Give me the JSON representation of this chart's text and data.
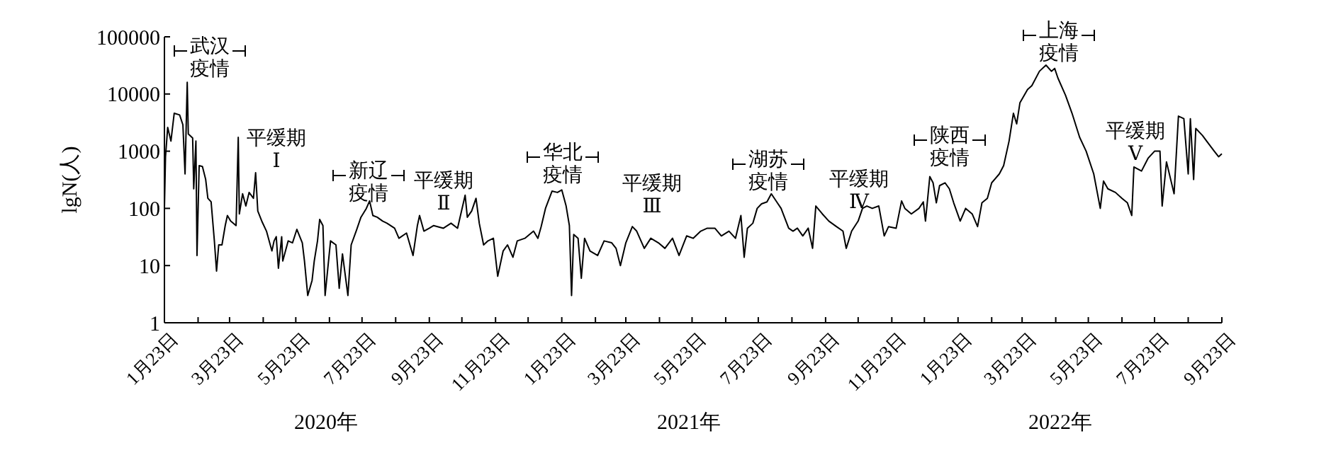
{
  "chart_data": {
    "type": "line",
    "ylabel": "lgN(人)",
    "log": true,
    "grid": false,
    "xlim": [
      "2020-01-23",
      "2022-09-23"
    ],
    "xticks": [
      {
        "value": "2020-01-23",
        "label": "1月23日"
      },
      {
        "value": "2020-02-23",
        "label": null
      },
      {
        "value": "2020-03-23",
        "label": "3月23日"
      },
      {
        "value": "2020-04-23",
        "label": null
      },
      {
        "value": "2020-05-23",
        "label": "5月23日"
      },
      {
        "value": "2020-06-23",
        "label": null
      },
      {
        "value": "2020-07-23",
        "label": "7月23日"
      },
      {
        "value": "2020-08-23",
        "label": null
      },
      {
        "value": "2020-09-23",
        "label": "9月23日"
      },
      {
        "value": "2020-10-23",
        "label": null
      },
      {
        "value": "2020-11-23",
        "label": "11月23日"
      },
      {
        "value": "2020-12-23",
        "label": null
      },
      {
        "value": "2021-01-23",
        "label": "1月23日"
      },
      {
        "value": "2021-02-23",
        "label": null
      },
      {
        "value": "2021-03-23",
        "label": "3月23日"
      },
      {
        "value": "2021-04-23",
        "label": null
      },
      {
        "value": "2021-05-23",
        "label": "5月23日"
      },
      {
        "value": "2021-06-23",
        "label": null
      },
      {
        "value": "2021-07-23",
        "label": "7月23日"
      },
      {
        "value": "2021-08-23",
        "label": null
      },
      {
        "value": "2021-09-23",
        "label": "9月23日"
      },
      {
        "value": "2021-10-23",
        "label": null
      },
      {
        "value": "2021-11-23",
        "label": "11月23日"
      },
      {
        "value": "2021-12-23",
        "label": null
      },
      {
        "value": "2022-01-23",
        "label": "1月23日"
      },
      {
        "value": "2022-02-23",
        "label": null
      },
      {
        "value": "2022-03-23",
        "label": "3月23日"
      },
      {
        "value": "2022-04-23",
        "label": null
      },
      {
        "value": "2022-05-23",
        "label": "5月23日"
      },
      {
        "value": "2022-06-23",
        "label": null
      },
      {
        "value": "2022-07-23",
        "label": "7月23日"
      },
      {
        "value": "2022-08-23",
        "label": null
      },
      {
        "value": "2022-09-23",
        "label": "9月23日"
      }
    ],
    "ylim": [
      1,
      100000
    ],
    "yticks": [
      1,
      10,
      100,
      1000,
      10000,
      100000
    ],
    "x": [
      "2020-01-23",
      "2020-01-24",
      "2020-01-26",
      "2020-01-29",
      "2020-02-01",
      "2020-02-06",
      "2020-02-09",
      "2020-02-11",
      "2020-02-13",
      "2020-02-14",
      "2020-02-18",
      "2020-02-19",
      "2020-02-21",
      "2020-02-22",
      "2020-02-24",
      "2020-02-27",
      "2020-03-01",
      "2020-03-03",
      "2020-03-06",
      "2020-03-09",
      "2020-03-11",
      "2020-03-13",
      "2020-03-16",
      "2020-03-19",
      "2020-03-21",
      "2020-03-24",
      "2020-03-29",
      "2020-03-31",
      "2020-04-01",
      "2020-04-04",
      "2020-04-07",
      "2020-04-10",
      "2020-04-14",
      "2020-04-16",
      "2020-04-18",
      "2020-04-22",
      "2020-04-26",
      "2020-05-01",
      "2020-05-03",
      "2020-05-05",
      "2020-05-07",
      "2020-05-10",
      "2020-05-11",
      "2020-05-16",
      "2020-05-20",
      "2020-05-24",
      "2020-05-29",
      "2020-05-31",
      "2020-06-03",
      "2020-06-07",
      "2020-06-09",
      "2020-06-12",
      "2020-06-14",
      "2020-06-17",
      "2020-06-19",
      "2020-06-24",
      "2020-06-29",
      "2020-07-02",
      "2020-07-05",
      "2020-07-10",
      "2020-07-13",
      "2020-07-18",
      "2020-07-22",
      "2020-07-27",
      "2020-07-30",
      "2020-08-02",
      "2020-08-06",
      "2020-08-11",
      "2020-08-15",
      "2020-08-22",
      "2020-08-26",
      "2020-09-02",
      "2020-09-08",
      "2020-09-12",
      "2020-09-14",
      "2020-09-18",
      "2020-09-23",
      "2020-09-27",
      "2020-10-06",
      "2020-10-13",
      "2020-10-19",
      "2020-10-26",
      "2020-10-28",
      "2020-11-01",
      "2020-11-05",
      "2020-11-08",
      "2020-11-12",
      "2020-11-16",
      "2020-11-21",
      "2020-11-25",
      "2020-11-30",
      "2020-12-04",
      "2020-12-09",
      "2020-12-13",
      "2020-12-20",
      "2020-12-28",
      "2021-01-01",
      "2021-01-04",
      "2021-01-08",
      "2021-01-14",
      "2021-01-19",
      "2021-01-23",
      "2021-01-27",
      "2021-01-30",
      "2021-02-01",
      "2021-02-03",
      "2021-02-07",
      "2021-02-10",
      "2021-02-13",
      "2021-02-18",
      "2021-02-25",
      "2021-03-03",
      "2021-03-10",
      "2021-03-14",
      "2021-03-18",
      "2021-03-23",
      "2021-03-29",
      "2021-04-02",
      "2021-04-09",
      "2021-04-15",
      "2021-04-22",
      "2021-04-28",
      "2021-05-05",
      "2021-05-11",
      "2021-05-18",
      "2021-05-24",
      "2021-05-31",
      "2021-06-06",
      "2021-06-13",
      "2021-06-19",
      "2021-06-26",
      "2021-07-02",
      "2021-07-07",
      "2021-07-10",
      "2021-07-13",
      "2021-07-18",
      "2021-07-22",
      "2021-07-26",
      "2021-07-31",
      "2021-08-04",
      "2021-08-09",
      "2021-08-13",
      "2021-08-20",
      "2021-08-24",
      "2021-08-28",
      "2021-09-02",
      "2021-09-07",
      "2021-09-11",
      "2021-09-14",
      "2021-09-20",
      "2021-09-26",
      "2021-10-03",
      "2021-10-09",
      "2021-10-12",
      "2021-10-17",
      "2021-10-23",
      "2021-10-27",
      "2021-10-31",
      "2021-11-05",
      "2021-11-11",
      "2021-11-16",
      "2021-11-20",
      "2021-11-27",
      "2021-12-02",
      "2021-12-05",
      "2021-12-11",
      "2021-12-18",
      "2021-12-22",
      "2021-12-24",
      "2021-12-28",
      "2021-12-31",
      "2022-01-03",
      "2022-01-06",
      "2022-01-11",
      "2022-01-15",
      "2022-01-19",
      "2022-01-25",
      "2022-01-30",
      "2022-02-05",
      "2022-02-10",
      "2022-02-14",
      "2022-02-19",
      "2022-02-23",
      "2022-03-02",
      "2022-03-06",
      "2022-03-11",
      "2022-03-15",
      "2022-03-18",
      "2022-03-21",
      "2022-03-28",
      "2022-04-01",
      "2022-04-08",
      "2022-04-14",
      "2022-04-19",
      "2022-04-22",
      "2022-04-25",
      "2022-05-02",
      "2022-05-08",
      "2022-05-15",
      "2022-05-21",
      "2022-05-28",
      "2022-06-03",
      "2022-06-06",
      "2022-06-10",
      "2022-06-17",
      "2022-06-23",
      "2022-06-28",
      "2022-07-02",
      "2022-07-04",
      "2022-07-11",
      "2022-07-17",
      "2022-07-23",
      "2022-07-28",
      "2022-07-30",
      "2022-08-03",
      "2022-08-10",
      "2022-08-14",
      "2022-08-19",
      "2022-08-23",
      "2022-08-25",
      "2022-08-28",
      "2022-08-30",
      "2022-09-05",
      "2022-09-09",
      "2022-09-16",
      "2022-09-20",
      "2022-09-23"
    ],
    "series": [
      {
        "color": "#000000",
        "values": [
          100,
          800,
          2600,
          1500,
          4600,
          4300,
          2900,
          400,
          16000,
          2000,
          1700,
          220,
          1500,
          15,
          560,
          540,
          320,
          150,
          130,
          27,
          8,
          23,
          23,
          50,
          75,
          60,
          50,
          1750,
          80,
          180,
          110,
          190,
          150,
          420,
          90,
          58,
          40,
          18,
          27,
          32,
          9,
          32,
          12,
          27,
          25,
          43,
          25,
          12,
          3,
          5.5,
          12,
          27,
          64,
          50,
          3,
          27,
          23,
          4,
          16,
          3,
          23,
          42,
          70,
          100,
          135,
          75,
          70,
          60,
          55,
          45,
          30,
          37,
          15,
          50,
          75,
          40,
          45,
          50,
          45,
          55,
          45,
          170,
          70,
          90,
          150,
          55,
          23,
          27,
          30,
          6.5,
          18,
          23,
          14,
          27,
          30,
          40,
          30,
          48,
          100,
          200,
          190,
          210,
          110,
          50,
          3,
          35,
          30,
          6,
          30,
          18,
          15,
          27,
          25,
          20,
          10,
          25,
          48,
          40,
          20,
          30,
          25,
          20,
          30,
          15,
          33,
          30,
          40,
          45,
          45,
          33,
          40,
          30,
          75,
          14,
          45,
          55,
          100,
          120,
          130,
          180,
          130,
          100,
          45,
          40,
          45,
          33,
          45,
          20,
          110,
          80,
          60,
          48,
          40,
          20,
          40,
          60,
          100,
          110,
          100,
          110,
          33,
          48,
          45,
          135,
          100,
          80,
          100,
          130,
          60,
          360,
          280,
          125,
          250,
          280,
          220,
          125,
          60,
          100,
          80,
          48,
          125,
          150,
          280,
          400,
          560,
          1500,
          4600,
          3000,
          7000,
          12000,
          14000,
          25000,
          32000,
          25000,
          28000,
          19000,
          9500,
          4600,
          1750,
          1000,
          400,
          100,
          300,
          220,
          190,
          150,
          125,
          75,
          530,
          450,
          750,
          1000,
          1000,
          110,
          650,
          180,
          4100,
          3700,
          400,
          3700,
          320,
          2500,
          1900,
          1500,
          1000,
          800,
          900
        ]
      }
    ],
    "annotations": [
      "武汉疫情",
      "平缓期Ⅰ",
      "新辽疫情",
      "平缓期Ⅱ",
      "华北疫情",
      "平缓期Ⅲ",
      "湖苏疫情",
      "平缓期Ⅳ",
      "陕西疫情",
      "上海疫情",
      "平缓期Ⅴ",
      "2020年",
      "2021年",
      "2022年"
    ]
  }
}
